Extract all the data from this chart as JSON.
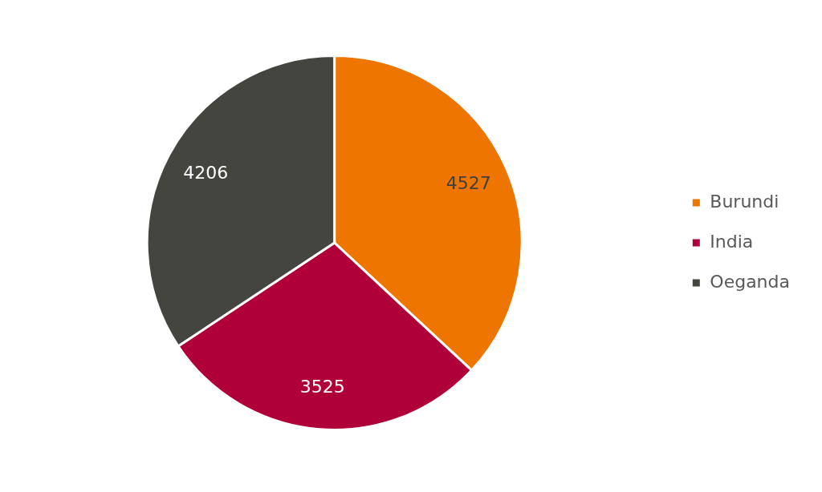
{
  "chart_data": {
    "type": "pie",
    "categories": [
      "Burundi",
      "India",
      "Oeganda"
    ],
    "values": [
      4527,
      3525,
      4206
    ],
    "colors": [
      "#ed7500",
      "#b0003a",
      "#454540"
    ],
    "legend": "right",
    "data_labels": true
  }
}
